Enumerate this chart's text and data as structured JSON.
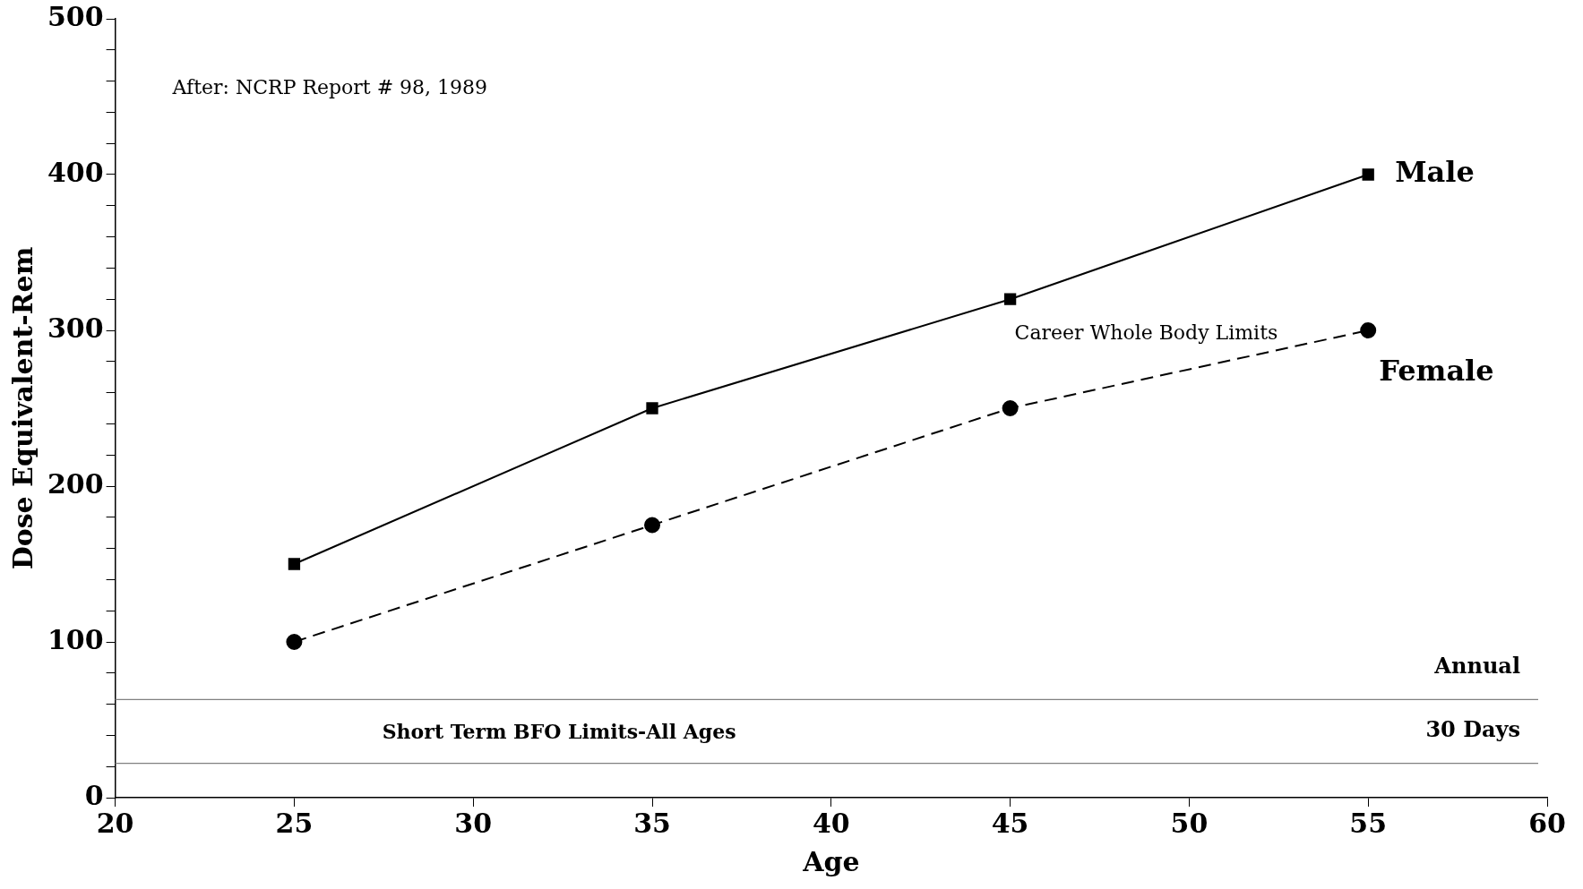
{
  "chart_data": {
    "type": "line",
    "xlabel": "Age",
    "ylabel": "Dose Equivalent-Rem",
    "x": [
      25,
      35,
      45,
      55
    ],
    "series": [
      {
        "name": "Male",
        "color": "#000000",
        "values": [
          150,
          250,
          320,
          400
        ],
        "marker": "square",
        "line_style": "solid"
      },
      {
        "name": "Female",
        "color": "#000000",
        "values": [
          100,
          175,
          250,
          300
        ],
        "marker": "circle",
        "line_style": "dashed"
      }
    ],
    "xlim": [
      20,
      60
    ],
    "xticks": [
      20,
      25,
      30,
      35,
      40,
      45,
      50,
      55,
      60
    ],
    "ylim": [
      0,
      500
    ],
    "yticks": [
      0,
      {
        "value": 20,
        "label": null
      },
      {
        "value": 40,
        "label": null
      },
      {
        "value": 60,
        "label": null
      },
      {
        "value": 80,
        "label": null
      },
      100,
      {
        "value": 120,
        "label": null
      },
      {
        "value": 140,
        "label": null
      },
      {
        "value": 160,
        "label": null
      },
      {
        "value": 180,
        "label": null
      },
      200,
      {
        "value": 220,
        "label": null
      },
      {
        "value": 240,
        "label": null
      },
      {
        "value": 260,
        "label": null
      },
      {
        "value": 280,
        "label": null
      },
      300,
      {
        "value": 320,
        "label": null
      },
      {
        "value": 340,
        "label": null
      },
      {
        "value": 360,
        "label": null
      },
      {
        "value": 380,
        "label": null
      },
      400,
      {
        "value": 420,
        "label": null
      },
      {
        "value": 440,
        "label": null
      },
      {
        "value": 460,
        "label": null
      },
      {
        "value": 480,
        "label": null
      },
      500
    ],
    "ref_lines": [
      {
        "axis": "y",
        "value": 63,
        "label": "Annual",
        "color": "#808080"
      },
      {
        "axis": "y",
        "value": 22,
        "label": "30 Days",
        "color": "#808080"
      }
    ],
    "annotations": [
      "After: NCRP Report # 98, 1989",
      "Career Whole Body Limits",
      "Short Term BFO Limits-All Ages"
    ],
    "grid": false,
    "legend": false
  }
}
